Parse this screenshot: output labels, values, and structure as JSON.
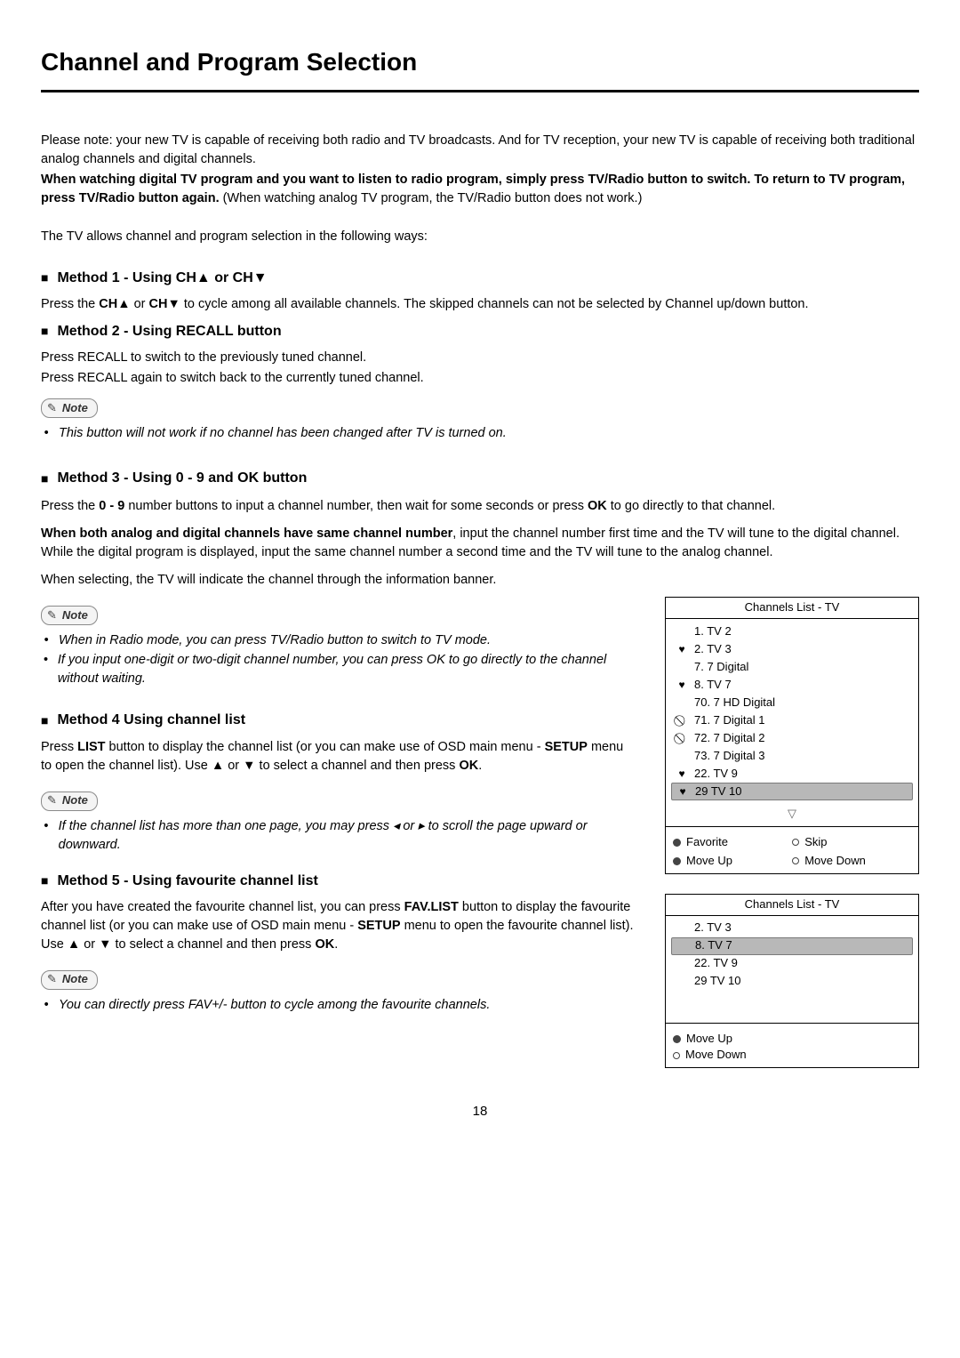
{
  "title": "Channel and Program Selection",
  "intro": {
    "p1": "Please note: your new TV is capable of receiving both radio and TV broadcasts. And for TV reception, your new TV is capable of receiving both traditional analog channels and digital channels.",
    "p2_bold": "When watching digital TV program and you want to listen to radio program, simply press TV/Radio button to switch. To return to TV program, press TV/Radio button again.",
    "p2_tail": " (When watching analog TV program, the TV/Radio button does not work.)",
    "lead": "The TV allows channel and program selection in the following ways:"
  },
  "methods": {
    "m1": {
      "head_prefix": "Method 1 - Using CH",
      "head_mid": " or CH",
      "body_prefix": "Press the ",
      "body_b1": "CH",
      "body_mid1": " or ",
      "body_b2": "CH",
      "body_tail": " to cycle among all available channels. The skipped channels can not be selected by Channel up/down button."
    },
    "m2": {
      "head": "Method 2 - Using RECALL button",
      "p1": "Press RECALL to switch to the previously tuned channel.",
      "p2": "Press RECALL again to switch back to the currently tuned channel.",
      "note": "This button will not work if no channel has been changed after TV is turned on."
    },
    "m3": {
      "head": "Method 3 - Using 0 - 9 and OK button",
      "p1_pre": "Press the ",
      "p1_b": "0 - 9",
      "p1_mid": " number buttons to input a channel number, then wait for some seconds or press ",
      "p1_b2": "OK",
      "p1_tail": " to go directly to that channel.",
      "p2_b": "When both analog and digital channels have same channel number",
      "p2_tail": ", input the channel number first time and the TV will tune to the digital channel. While the digital program is displayed, input the same channel number a second time and the TV will tune to the analog channel.",
      "p3": "When selecting, the TV will indicate the channel through the information banner.",
      "note1": "When in Radio mode, you can press TV/Radio button to switch to TV mode.",
      "note2": "If you input one-digit or two-digit channel number, you can press OK to go directly to the channel without waiting."
    },
    "m4": {
      "head": "Method 4  Using channel list",
      "p_pre": "Press ",
      "p_b1": "LIST",
      "p_mid1": " button to display the channel list (or you can make use of OSD main menu - ",
      "p_b2": "SETUP",
      "p_mid2": " menu to open the channel list). Use ",
      "p_mid3": " or ",
      "p_mid4": " to select a channel and then press ",
      "p_b3": "OK",
      "p_tail": ".",
      "note_pre": "If the channel list has more than one page, you may press ",
      "note_mid": " or ",
      "note_tail": " to scroll the page upward or downward."
    },
    "m5": {
      "head": "Method 5 - Using favourite channel list",
      "p_pre": "After you have created the favourite channel list, you can press ",
      "p_b1": "FAV.LIST",
      "p_mid1": " button to display the favourite channel list (or you can make use of OSD main menu - ",
      "p_b2": "SETUP",
      "p_mid2": " menu to open the favourite channel list). Use ",
      "p_mid3": " or ",
      "p_mid4": " to select a channel and then press ",
      "p_b3": "OK",
      "p_tail": ".",
      "note": "You can directly press FAV+/- button to cycle among the favourite channels."
    }
  },
  "note_label": "Note",
  "panels": {
    "full": {
      "title": "Channels  List - TV",
      "rows": [
        {
          "mark": "",
          "label": "1. TV 2",
          "selected": false
        },
        {
          "mark": "♥",
          "label": "2. TV 3",
          "selected": false
        },
        {
          "mark": "",
          "label": "7. 7 Digital",
          "selected": false
        },
        {
          "mark": "♥",
          "label": "8. TV 7",
          "selected": false
        },
        {
          "mark": "",
          "label": "70. 7 HD Digital",
          "selected": false
        },
        {
          "mark": "⃠",
          "label": "71. 7 Digital 1",
          "selected": false
        },
        {
          "mark": "⃠",
          "label": "72. 7 Digital 2",
          "selected": false
        },
        {
          "mark": "",
          "label": "73. 7 Digital 3",
          "selected": false
        },
        {
          "mark": "♥",
          "label": "22. TV 9",
          "selected": false
        },
        {
          "mark": "♥",
          "label": "29 TV 10",
          "selected": true
        }
      ],
      "legend": {
        "fav": "Favorite",
        "skip": "Skip",
        "up": "Move Up",
        "down": "Move Down"
      }
    },
    "fav": {
      "title": "Channels  List - TV",
      "rows": [
        {
          "mark": "",
          "label": "2. TV 3",
          "selected": false
        },
        {
          "mark": "",
          "label": "8. TV 7",
          "selected": true
        },
        {
          "mark": "",
          "label": "22. TV 9",
          "selected": false
        },
        {
          "mark": "",
          "label": "29 TV 10",
          "selected": false
        }
      ],
      "legend": {
        "up": "Move Up",
        "down": "Move Down"
      }
    }
  },
  "page_number": "18",
  "glyphs": {
    "up": "▲",
    "down": "▼",
    "left": "◂",
    "right": "▸",
    "downhollow": "▽"
  }
}
